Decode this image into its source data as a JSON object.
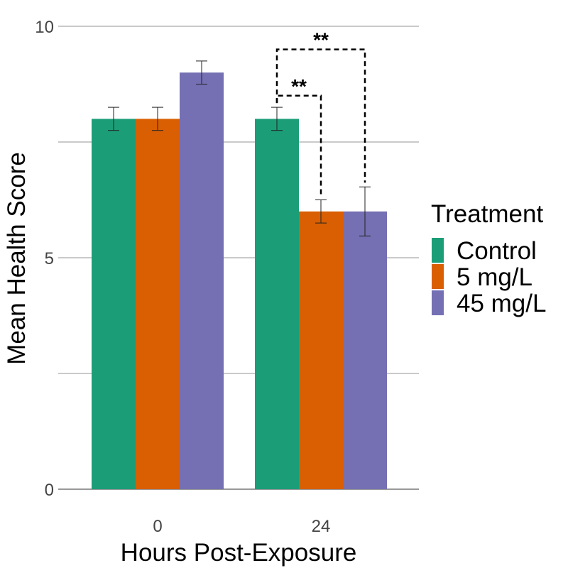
{
  "chart_data": {
    "type": "bar",
    "xlabel": "Hours Post-Exposure",
    "ylabel": "Mean Health Score",
    "ylim": [
      0,
      10
    ],
    "yticks": [
      0,
      2.5,
      5,
      7.5,
      10
    ],
    "ytick_labels": [
      "0",
      "",
      "5",
      "",
      "10"
    ],
    "categories": [
      "0",
      "24"
    ],
    "grid": "horizontal",
    "legend_placement": "right",
    "legend_title": "Treatment",
    "series": [
      {
        "name": "Control",
        "color": "#1b9e77",
        "values": [
          8.0,
          8.0
        ],
        "errors": [
          0.25,
          0.25
        ]
      },
      {
        "name": "5 mg/L",
        "color": "#d95f02",
        "values": [
          8.0,
          6.0
        ],
        "errors": [
          0.25,
          0.25
        ]
      },
      {
        "name": "45 mg/L",
        "color": "#7570b3",
        "values": [
          9.0,
          6.0
        ],
        "errors": [
          0.25,
          0.53
        ]
      }
    ],
    "significance": [
      {
        "category": "24",
        "from_series": 0,
        "to_series": 1,
        "label": "**",
        "y": 8.5
      },
      {
        "category": "24",
        "from_series": 0,
        "to_series": 2,
        "label": "**",
        "y": 9.5
      }
    ]
  }
}
